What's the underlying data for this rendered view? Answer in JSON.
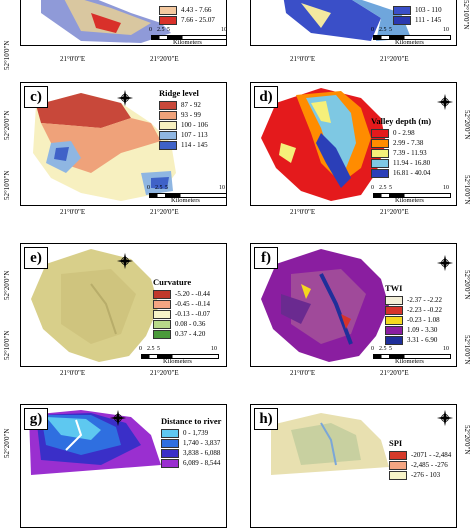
{
  "coord_labels": {
    "lat_top": "52°20'0\"N",
    "lat_bottom": "52°10'0\"N",
    "lon_left": "21°0'0\"E",
    "lon_right": "21°20'0\"E"
  },
  "scale_bar": {
    "ticks": [
      "0",
      "2.5",
      "5",
      "10"
    ],
    "unit": "Kilometers"
  },
  "panels": {
    "a": {
      "letter": "",
      "legend_title": "",
      "classes": [
        {
          "label": "4.43 - 7.66",
          "color": "#f4c9a0"
        },
        {
          "label": "7.66 - 25.07",
          "color": "#d9302a"
        }
      ]
    },
    "b": {
      "letter": "",
      "legend_title": "",
      "classes": [
        {
          "label": "103 - 110",
          "color": "#3a4fc8"
        },
        {
          "label": "111 - 145",
          "color": "#2a38b0"
        }
      ]
    },
    "c": {
      "letter": "c)",
      "legend_title": "Ridge level",
      "classes": [
        {
          "label": "87 - 92",
          "color": "#c8483a"
        },
        {
          "label": "93 - 99",
          "color": "#efa27a"
        },
        {
          "label": "100 - 106",
          "color": "#f7f0c0"
        },
        {
          "label": "107 - 113",
          "color": "#8fb6e2"
        },
        {
          "label": "114 - 145",
          "color": "#3f62c8"
        }
      ]
    },
    "d": {
      "letter": "d)",
      "legend_title": "Valley depth (m)",
      "classes": [
        {
          "label": "0 - 2.98",
          "color": "#e41a1c"
        },
        {
          "label": "2.99 - 7.38",
          "color": "#ff8c00"
        },
        {
          "label": "7.39 - 11.93",
          "color": "#f5f07a"
        },
        {
          "label": "11.94 - 16.80",
          "color": "#7ec8e3"
        },
        {
          "label": "16.81 - 40.04",
          "color": "#2b3fb8"
        }
      ]
    },
    "e": {
      "letter": "e)",
      "legend_title": "Curvature",
      "classes": [
        {
          "label": "-5.20 - -0.44",
          "color": "#c0392b"
        },
        {
          "label": "-0.45 - -0.14",
          "color": "#f4a582"
        },
        {
          "label": "-0.13 - -0.07",
          "color": "#f7f4c8"
        },
        {
          "label": "0.08 - 0.36",
          "color": "#b8d98a"
        },
        {
          "label": "0.37 - 4.20",
          "color": "#4a9a3a"
        }
      ]
    },
    "f": {
      "letter": "f)",
      "legend_title": "TWI",
      "classes": [
        {
          "label": "-2.37 - -2.22",
          "color": "#f2eed8"
        },
        {
          "label": "-2.23 - -0.22",
          "color": "#d6332a"
        },
        {
          "label": "-0.23 - 1.08",
          "color": "#f5d81e"
        },
        {
          "label": "1.09 - 3.30",
          "color": "#8a1ea0"
        },
        {
          "label": "3.31 - 6.90",
          "color": "#1f2f9a"
        }
      ]
    },
    "g": {
      "letter": "g)",
      "legend_title": "Distance to river",
      "classes": [
        {
          "label": "0 - 1,739",
          "color": "#5ec8f0"
        },
        {
          "label": "1,740 - 3,837",
          "color": "#2f6fe0"
        },
        {
          "label": "3,838 - 6,088",
          "color": "#3a2fc8"
        },
        {
          "label": "6,089 - 8,544",
          "color": "#9a2fd0"
        }
      ]
    },
    "h": {
      "letter": "h)",
      "legend_title": "SPI",
      "classes": [
        {
          "label": "-2071 - -2,484",
          "color": "#d63a2a"
        },
        {
          "label": "-2,485 - -276",
          "color": "#f4a582"
        },
        {
          "label": "-276 - 103",
          "color": "#f7f4c8"
        }
      ]
    }
  },
  "colors": {
    "background": "#ffffff",
    "frame": "#000000"
  }
}
